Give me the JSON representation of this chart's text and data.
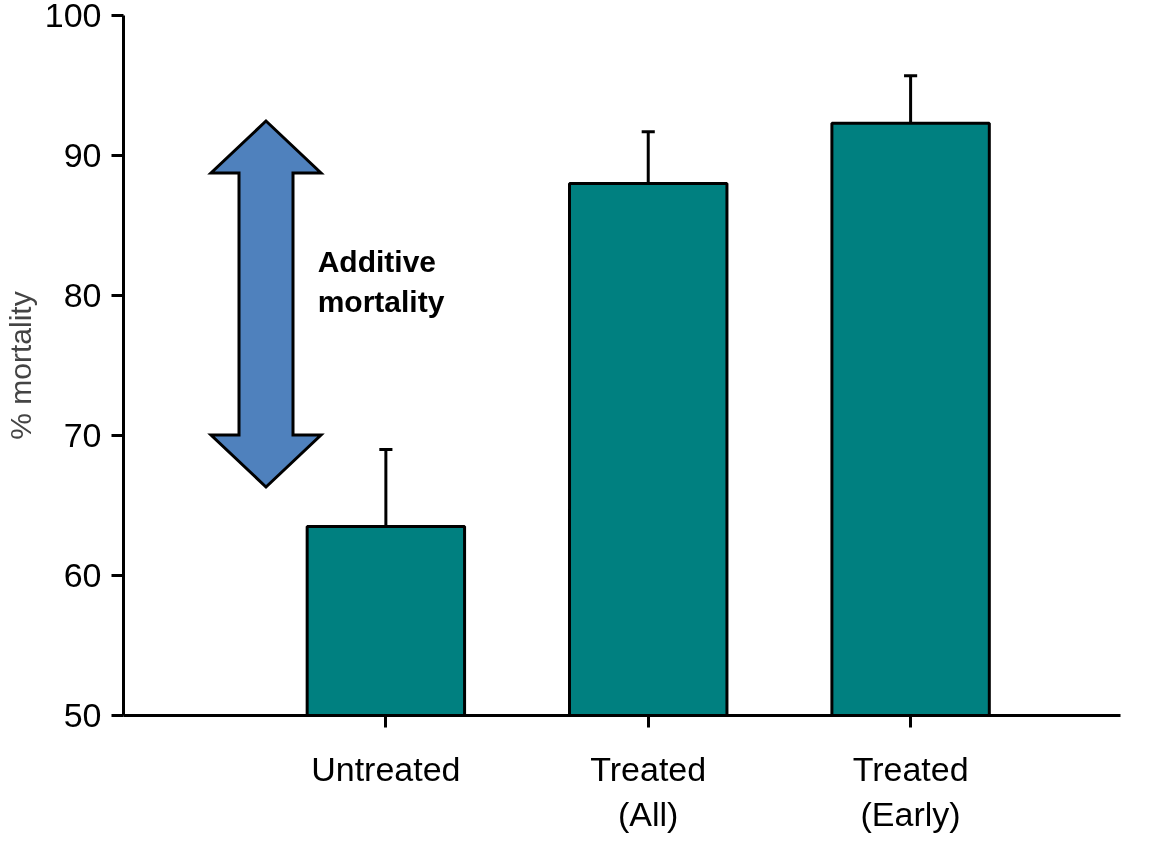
{
  "chart_data": {
    "type": "bar",
    "ylabel": "% mortality",
    "categories": [
      "Untreated",
      "Treated\n(All)",
      "Treated\n(Early)"
    ],
    "values": [
      63.5,
      88.0,
      92.3
    ],
    "errors": [
      [
        63.5,
        69.0
      ],
      [
        88.0,
        91.7
      ],
      [
        92.3,
        95.7
      ]
    ],
    "color": "#008080",
    "ylim": [
      50,
      100
    ],
    "yticks": [
      50,
      60,
      70,
      80,
      90,
      100
    ],
    "grid": false,
    "annotations": [
      "Additive\nmortality"
    ]
  }
}
